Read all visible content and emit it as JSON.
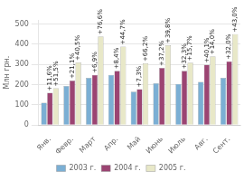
{
  "chart_data": {
    "type": "bar",
    "categories": [
      "Янв.",
      "Февр.",
      "Март",
      "Апр.",
      "Май",
      "Июнь",
      "Июль",
      "Авг.",
      "Сент."
    ],
    "series": [
      {
        "name": "2003 г.",
        "color": "#7bafd4",
        "values": [
          110,
          193,
          233,
          248,
          165,
          207,
          203,
          213,
          233
        ]
      },
      {
        "name": "2004 г.",
        "color": "#9b4472",
        "values": [
          160,
          220,
          248,
          268,
          178,
          283,
          268,
          298,
          315
        ],
        "annotations": [
          "+11,6%",
          "+21,1%",
          "+6,9%",
          "+8,4%",
          "+7,3%",
          "+37,2%",
          "+32,3%",
          "+40,1%",
          "+32,0%"
        ]
      },
      {
        "name": "2005 г.",
        "color": "#e8e8c8",
        "values": [
          182,
          310,
          438,
          388,
          305,
          395,
          308,
          340,
          450
        ],
        "annotations": [
          "+51,5%",
          "+40,5%",
          "+76,6%",
          "+44,7%",
          "+66,2%",
          "+39,8%",
          "+15,7%",
          "+14,0%",
          "+43,0%"
        ]
      }
    ],
    "ylabel": "Млн грн.",
    "ylim": [
      0,
      520
    ],
    "yticks": [
      0,
      100,
      200,
      300,
      400,
      500
    ],
    "grid": true,
    "legend": "bottom"
  }
}
